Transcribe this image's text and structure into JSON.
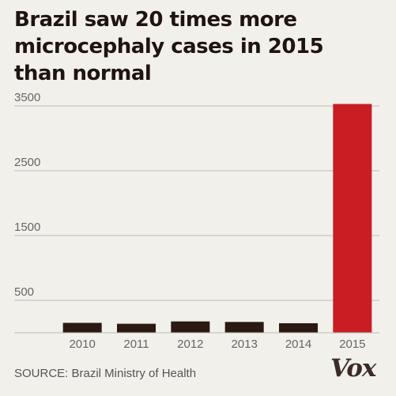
{
  "title_lines": [
    "Brazil saw 20 times more",
    "microcephaly cases in 2015",
    "than normal"
  ],
  "source": "SOURCE: Brazil Ministry of Health",
  "logo": "Vox",
  "colors": {
    "bar": "#2a1a12",
    "highlight": "#c91d24",
    "grid": "#bdbab3"
  },
  "chart_data": {
    "type": "bar",
    "categories": [
      "2010",
      "2011",
      "2012",
      "2013",
      "2014",
      "2015"
    ],
    "values": [
      153,
      139,
      175,
      167,
      147,
      3530
    ],
    "highlight_index": 5,
    "yticks": [
      500,
      1500,
      2500,
      3500
    ],
    "ylim": [
      0,
      3650
    ],
    "grid": true,
    "xlabel": "",
    "ylabel": ""
  }
}
